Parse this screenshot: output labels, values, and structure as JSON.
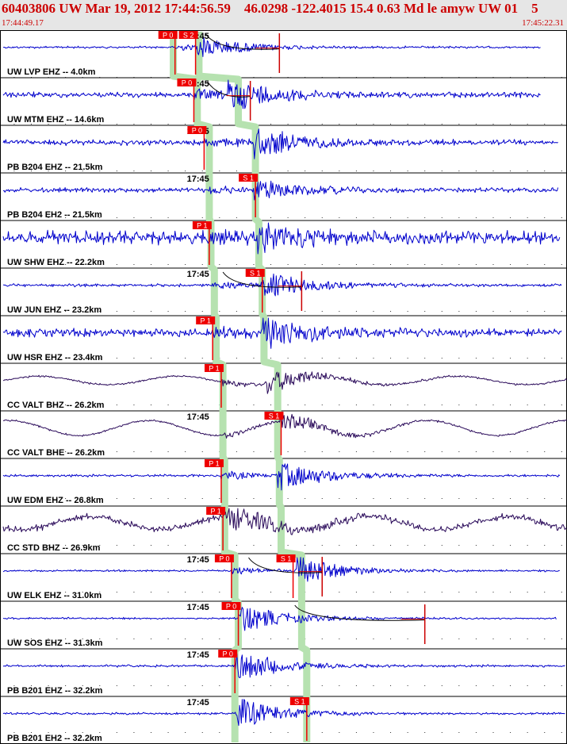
{
  "header": {
    "event": "60403806 UW Mar 19, 2012 17:44:56.59    46.0298 -122.4015 15.4 0.63 Md le amyw UW 01    5",
    "start_time": "17:44:49.17",
    "end_time": "17:45:22.31"
  },
  "colors": {
    "title": "#cc0000",
    "header_bg": "#e6e6e6",
    "trace_blue": "#0000cc",
    "trace_purple": "#2a0a5a",
    "pick": "#ee0000",
    "coda_line": "#cc0000",
    "travel_time_band": "#b6e2b0",
    "grid": "#000000"
  },
  "chart_data": {
    "type": "line",
    "xlim": [
      "17:44:49.17",
      "17:45:22.31"
    ],
    "minute_label": "17:45",
    "traces": [
      {
        "label": "UW LVP EHZ -- 4.0km",
        "color": "trace_blue",
        "p_pick": {
          "label": "P 0",
          "time": "17:44:59.4"
        },
        "s_pick": {
          "label": "S 2",
          "time": "17:45:00.6"
        },
        "p_band": "17:44:59.3",
        "s_band": "17:45:00.8",
        "onset": "17:45:00.7",
        "end": "17:45:20.8",
        "amplitude": 0.55,
        "noise": 0.06,
        "long_period": 0,
        "show_minute": true,
        "coda": [
          "17:45:01.2",
          "17:45:05.5"
        ]
      },
      {
        "label": "UW MTM EHZ -- 14.6km",
        "color": "trace_blue",
        "p_pick": {
          "label": "P 0",
          "time": "17:45:00.5"
        },
        "s_pick": null,
        "p_band": "17:45:00.7",
        "s_band": "17:45:03.1",
        "onset": "17:45:02.5",
        "end": "17:45:20.8",
        "amplitude": 0.75,
        "noise": 0.15,
        "long_period": 0,
        "show_minute": true,
        "coda": [
          "17:45:01.3",
          "17:45:03.8"
        ]
      },
      {
        "label": "PB B204 EHZ -- 21.5km",
        "color": "trace_blue",
        "p_pick": {
          "label": "P 0",
          "time": "17:45:01.1"
        },
        "s_pick": null,
        "p_band": "17:45:01.4",
        "s_band": "17:45:04.1",
        "onset": "17:45:04.0",
        "end": "17:45:21.8",
        "amplitude": 0.7,
        "noise": 0.15,
        "long_period": 0,
        "show_minute": true,
        "coda": null
      },
      {
        "label": "PB B204 EH2 -- 21.5km",
        "color": "trace_blue",
        "p_pick": null,
        "s_pick": {
          "label": "S 1",
          "time": "17:45:04.1"
        },
        "p_band": "17:45:01.4",
        "s_band": "17:45:04.1",
        "onset": "17:45:04.0",
        "end": "17:45:21.8",
        "amplitude": 0.55,
        "noise": 0.12,
        "long_period": 0,
        "show_minute": true,
        "coda": null
      },
      {
        "label": "UW SHW EHZ -- 22.2km",
        "color": "trace_blue",
        "p_pick": {
          "label": "P 1",
          "time": "17:45:01.4"
        },
        "s_pick": null,
        "p_band": "17:45:01.5",
        "s_band": "17:45:04.3",
        "onset": "17:45:04.2",
        "end": "17:45:21.9",
        "amplitude": 0.6,
        "noise": 0.35,
        "long_period": 0,
        "show_minute": false,
        "coda": null
      },
      {
        "label": "UW JUN EHZ -- 23.2km",
        "color": "trace_blue",
        "p_pick": null,
        "s_pick": {
          "label": "S 1",
          "time": "17:45:04.5"
        },
        "p_band": "17:45:01.7",
        "s_band": "17:45:04.5",
        "onset": "17:45:04.4",
        "end": "17:45:22.0",
        "amplitude": 0.7,
        "noise": 0.08,
        "long_period": 0,
        "show_minute": true,
        "coda": [
          "17:45:02.2",
          "17:45:06.8"
        ]
      },
      {
        "label": "UW HSR EHZ -- 23.4km",
        "color": "trace_blue",
        "p_pick": {
          "label": "P 1",
          "time": "17:45:01.6"
        },
        "s_pick": null,
        "p_band": "17:45:01.8",
        "s_band": "17:45:04.6",
        "onset": "17:45:04.5",
        "end": "17:45:22.0",
        "amplitude": 0.8,
        "noise": 0.22,
        "long_period": 0,
        "show_minute": false,
        "coda": null
      },
      {
        "label": "CC VALT BHZ -- 26.2km",
        "color": "trace_purple",
        "p_pick": {
          "label": "P 1",
          "time": "17:45:02.1"
        },
        "s_pick": null,
        "p_band": "17:45:02.2",
        "s_band": "17:45:05.4",
        "onset": "17:45:04.8",
        "end": "17:45:22.3",
        "amplitude": 0.6,
        "noise": 0.05,
        "long_period": 0.2,
        "show_minute": false,
        "coda": null
      },
      {
        "label": "CC VALT BHE -- 26.2km",
        "color": "trace_purple",
        "p_pick": null,
        "s_pick": {
          "label": "S 1",
          "time": "17:45:05.6"
        },
        "p_band": "17:45:02.2",
        "s_band": "17:45:05.4",
        "onset": "17:45:05.5",
        "end": "17:45:22.3",
        "amplitude": 0.45,
        "noise": 0.05,
        "long_period": 0.35,
        "show_minute": true,
        "coda": null
      },
      {
        "label": "UW EDM EHZ -- 26.8km",
        "color": "trace_blue",
        "p_pick": {
          "label": "P 1",
          "time": "17:45:02.1"
        },
        "s_pick": null,
        "p_band": "17:45:02.3",
        "s_band": "17:45:05.5",
        "onset": "17:45:05.4",
        "end": "17:45:21.9",
        "amplitude": 0.75,
        "noise": 0.07,
        "long_period": 0,
        "show_minute": false,
        "coda": null
      },
      {
        "label": "CC STD BHZ -- 26.9km",
        "color": "trace_purple",
        "p_pick": {
          "label": "P 1",
          "time": "17:45:02.2"
        },
        "s_pick": null,
        "p_band": "17:45:02.3",
        "s_band": "17:45:05.6",
        "onset": "17:45:02.5",
        "end": "17:45:22.3",
        "amplitude": 0.55,
        "noise": 0.18,
        "long_period": 0.3,
        "show_minute": false,
        "coda": null
      },
      {
        "label": "UW ELK EHZ -- 31.0km",
        "color": "trace_blue",
        "p_pick": {
          "label": "P 0",
          "time": "17:45:02.7"
        },
        "s_pick": {
          "label": "S 1",
          "time": "17:45:06.3"
        },
        "p_band": "17:45:02.9",
        "s_band": "17:45:06.8",
        "onset": "17:45:06.5",
        "end": "17:45:21.9",
        "amplitude": 0.7,
        "noise": 0.05,
        "long_period": 0,
        "show_minute": true,
        "coda": [
          "17:45:03.7",
          "17:45:08.0"
        ]
      },
      {
        "label": "UW SOS EHZ -- 31.3km",
        "color": "trace_blue",
        "p_pick": {
          "label": "P 0",
          "time": "17:45:03.1"
        },
        "s_pick": null,
        "p_band": "17:45:03.1",
        "s_band": "17:45:06.8",
        "onset": "17:45:03.2",
        "end": "17:45:21.7",
        "amplitude": 0.6,
        "noise": 0.05,
        "long_period": 0,
        "show_minute": true,
        "coda": [
          "17:45:06.4",
          "17:45:14.0"
        ]
      },
      {
        "label": "PB B201 EHZ -- 32.2km",
        "color": "trace_blue",
        "p_pick": {
          "label": "P 0",
          "time": "17:45:02.9"
        },
        "s_pick": null,
        "p_band": "17:45:02.9",
        "s_band": "17:45:07.1",
        "onset": "17:45:03.0",
        "end": "17:45:22.2",
        "amplitude": 0.65,
        "noise": 0.06,
        "long_period": 0,
        "show_minute": true,
        "coda": null
      },
      {
        "label": "PB B201 EH2 -- 32.2km",
        "color": "trace_blue",
        "p_pick": null,
        "s_pick": {
          "label": "S 1",
          "time": "17:45:07.1"
        },
        "p_band": "17:45:02.9",
        "s_band": "17:45:07.1",
        "onset": "17:45:03.0",
        "end": "17:45:22.2",
        "amplitude": 0.7,
        "noise": 0.06,
        "long_period": 0,
        "show_minute": true,
        "coda": null
      }
    ]
  }
}
